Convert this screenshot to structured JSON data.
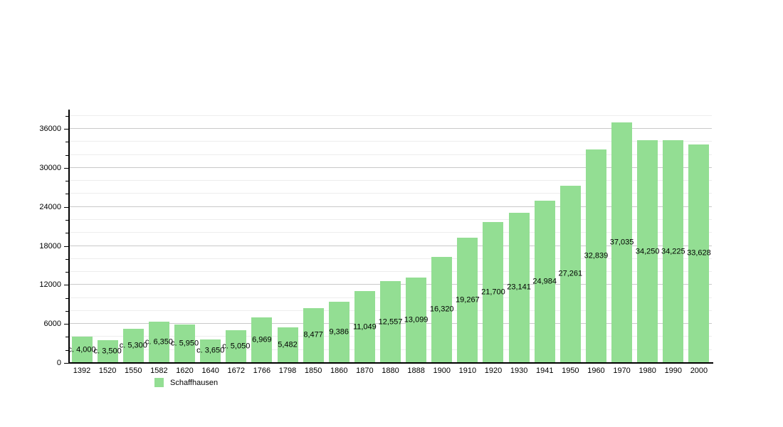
{
  "chart_data": {
    "type": "bar",
    "title": "",
    "xlabel": "",
    "ylabel": "",
    "series_name": "Schaffhausen",
    "categories": [
      "1392",
      "1520",
      "1550",
      "1582",
      "1620",
      "1640",
      "1672",
      "1766",
      "1798",
      "1850",
      "1860",
      "1870",
      "1880",
      "1888",
      "1900",
      "1910",
      "1920",
      "1930",
      "1941",
      "1950",
      "1960",
      "1970",
      "1980",
      "1990",
      "2000"
    ],
    "values": [
      4000,
      3500,
      5300,
      6350,
      5950,
      3650,
      5050,
      6969,
      5482,
      8477,
      9386,
      11049,
      12557,
      13099,
      16320,
      19267,
      21700,
      23141,
      24984,
      27261,
      32839,
      37035,
      34250,
      34225,
      33628
    ],
    "value_labels": [
      "c. 4,000",
      "c. 3,500",
      "c. 5,300",
      "c. 6,350",
      "c. 5,950",
      "c. 3,650",
      "c. 5,050",
      "6,969",
      "5,482",
      "8,477",
      "9,386",
      "11,049",
      "12,557",
      "13,099",
      "16,320",
      "19,267",
      "21,700",
      "23,141",
      "24,984",
      "27,261",
      "32,839",
      "37,035",
      "34,250",
      "34,225",
      "33,628"
    ],
    "ylim": [
      0,
      38850
    ],
    "y_major_ticks": [
      0,
      6000,
      12000,
      18000,
      24000,
      30000,
      36000
    ],
    "y_tick_labels": [
      "0",
      "6000",
      "12000",
      "18000",
      "24000",
      "30000",
      "36000"
    ],
    "y_minor_step": 2000,
    "y_minor_max": 38000,
    "grid": "on",
    "legend_position": "bottom-left"
  },
  "legend": {
    "label": "Schaffhausen"
  },
  "colors": {
    "bar": "#93de93",
    "grid_major": "#c9c9c9",
    "grid_minor": "#ededed",
    "axis": "#000000",
    "background": "#ffffff",
    "label_text": "#000000"
  }
}
